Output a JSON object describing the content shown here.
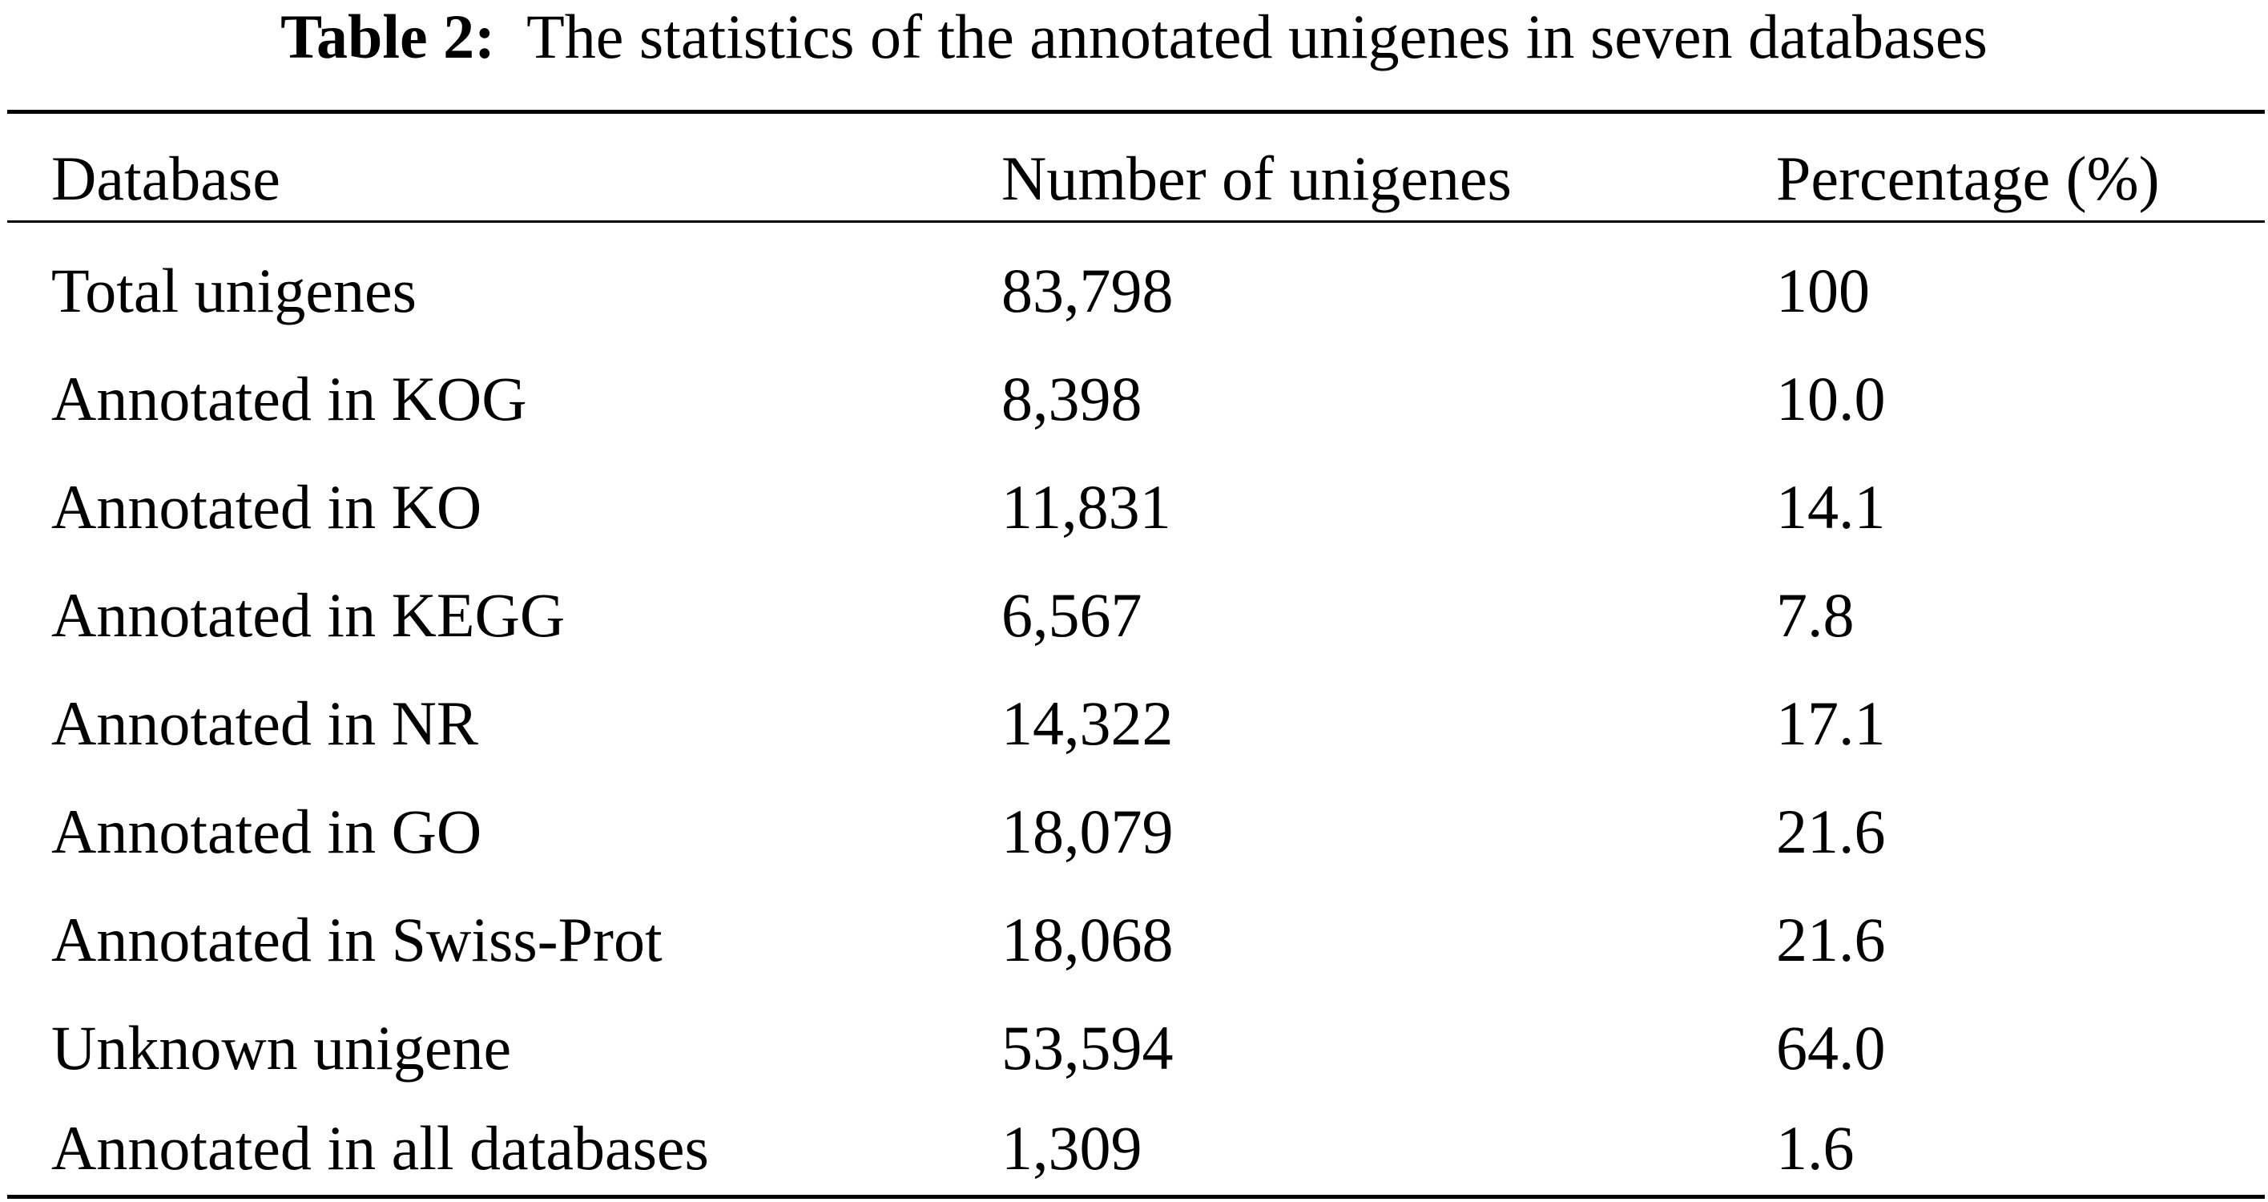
{
  "caption": {
    "label": "Table 2:",
    "text": "The statistics of the annotated unigenes in seven databases"
  },
  "table": {
    "headers": [
      "Database",
      "Number of unigenes",
      "Percentage (%)"
    ],
    "rows": [
      [
        "Total unigenes",
        "83,798",
        "100"
      ],
      [
        "Annotated in KOG",
        "8,398",
        "10.0"
      ],
      [
        "Annotated in KO",
        "11,831",
        "14.1"
      ],
      [
        "Annotated in KEGG",
        "6,567",
        "7.8"
      ],
      [
        "Annotated in NR",
        "14,322",
        "17.1"
      ],
      [
        "Annotated in GO",
        "18,079",
        "21.6"
      ],
      [
        "Annotated in Swiss-Prot",
        "18,068",
        "21.6"
      ],
      [
        "Unknown unigene",
        "53,594",
        "64.0"
      ],
      [
        "Annotated in all databases",
        "1,309",
        "1.6"
      ]
    ]
  }
}
